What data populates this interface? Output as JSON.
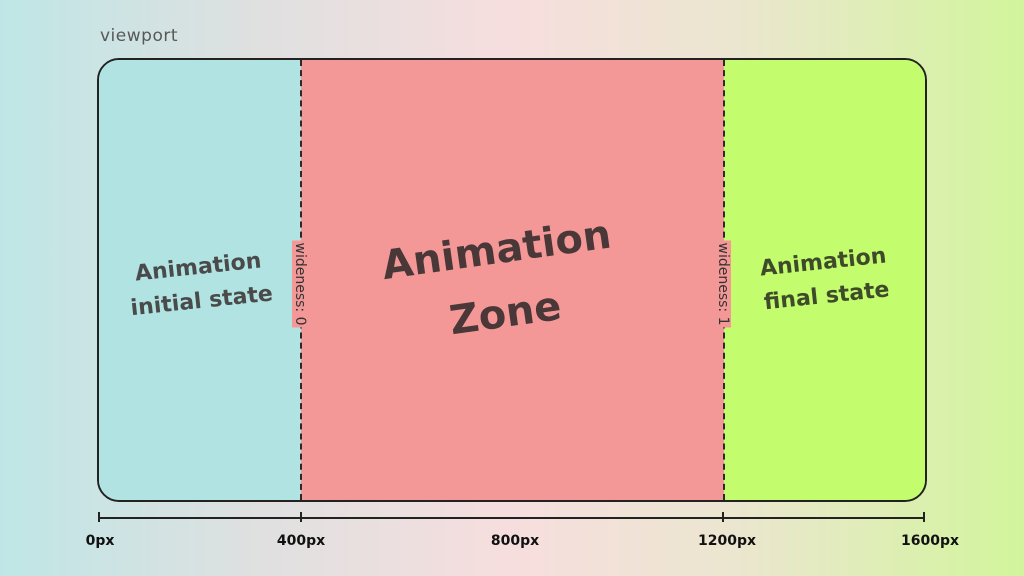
{
  "viewport_label": "viewport",
  "zones": {
    "initial": {
      "line1": "Animation",
      "line2": "initial state",
      "color": "#b1e3e3"
    },
    "animation": {
      "line1": "Animation",
      "line2": "Zone",
      "color": "#f49897"
    },
    "final": {
      "line1": "Animation",
      "line2": "final state",
      "color": "#c3fc6c"
    }
  },
  "markers": {
    "left": "wideness: 0",
    "right": "wideness: 1"
  },
  "axis": {
    "ticks": [
      "0px",
      "400px",
      "800px",
      "1200px",
      "1600px"
    ]
  }
}
